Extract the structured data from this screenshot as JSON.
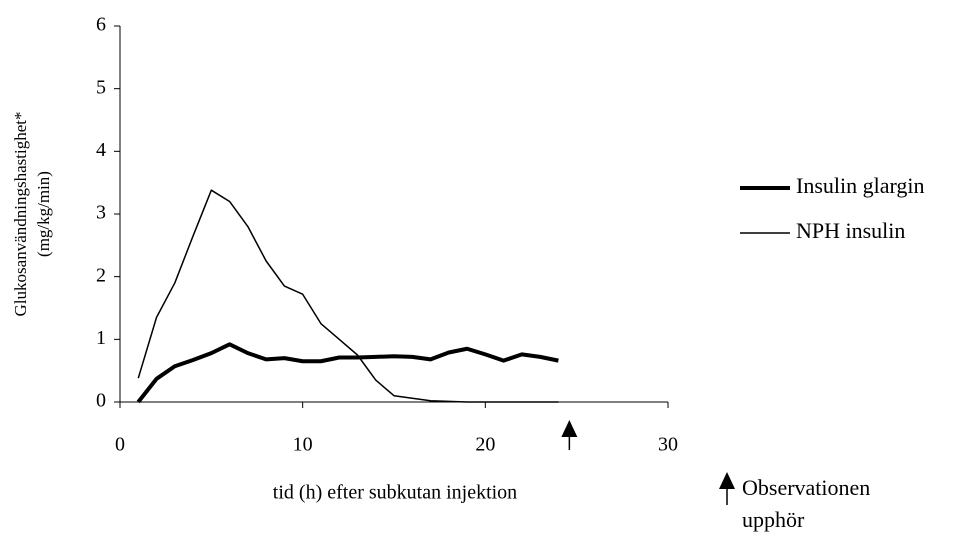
{
  "chart_data": {
    "type": "line",
    "xlabel": "tid (h) efter subkutan injektion",
    "ylabel": [
      "Glukosanvändningshastighet*",
      "(mg/kg/min)"
    ],
    "x": [
      1,
      2,
      3,
      4,
      5,
      6,
      7,
      8,
      9,
      10,
      11,
      12,
      13,
      14,
      15,
      16,
      17,
      18,
      19,
      20,
      21,
      22,
      23,
      24
    ],
    "series": [
      {
        "name": "Insulin glargin",
        "color": "#000000",
        "width": 4,
        "values": [
          0,
          0.37,
          0.57,
          0.67,
          0.78,
          0.92,
          0.78,
          0.68,
          0.7,
          0.65,
          0.65,
          0.71,
          0.71,
          0.72,
          0.73,
          0.72,
          0.68,
          0.79,
          0.85,
          0.76,
          0.66,
          0.76,
          0.72,
          0.66
        ]
      },
      {
        "name": "NPH insulin",
        "color": "#000000",
        "width": 1.5,
        "values": [
          0.38,
          1.35,
          1.9,
          2.65,
          3.38,
          3.2,
          2.8,
          2.25,
          1.85,
          1.72,
          1.25,
          1.0,
          0.75,
          0.35,
          0.1,
          0.06,
          0.02,
          0.01,
          0,
          0,
          0,
          0,
          0,
          0
        ]
      }
    ],
    "xlim": [
      0,
      30
    ],
    "xticks": [
      0,
      10,
      20,
      30
    ],
    "ylim": [
      0,
      6
    ],
    "yticks": [
      0,
      1,
      2,
      3,
      4,
      5,
      6
    ],
    "grid": false,
    "legend": "right",
    "annotation": {
      "x": 24.6,
      "lines": [
        "Observationen",
        "upphör"
      ]
    }
  }
}
